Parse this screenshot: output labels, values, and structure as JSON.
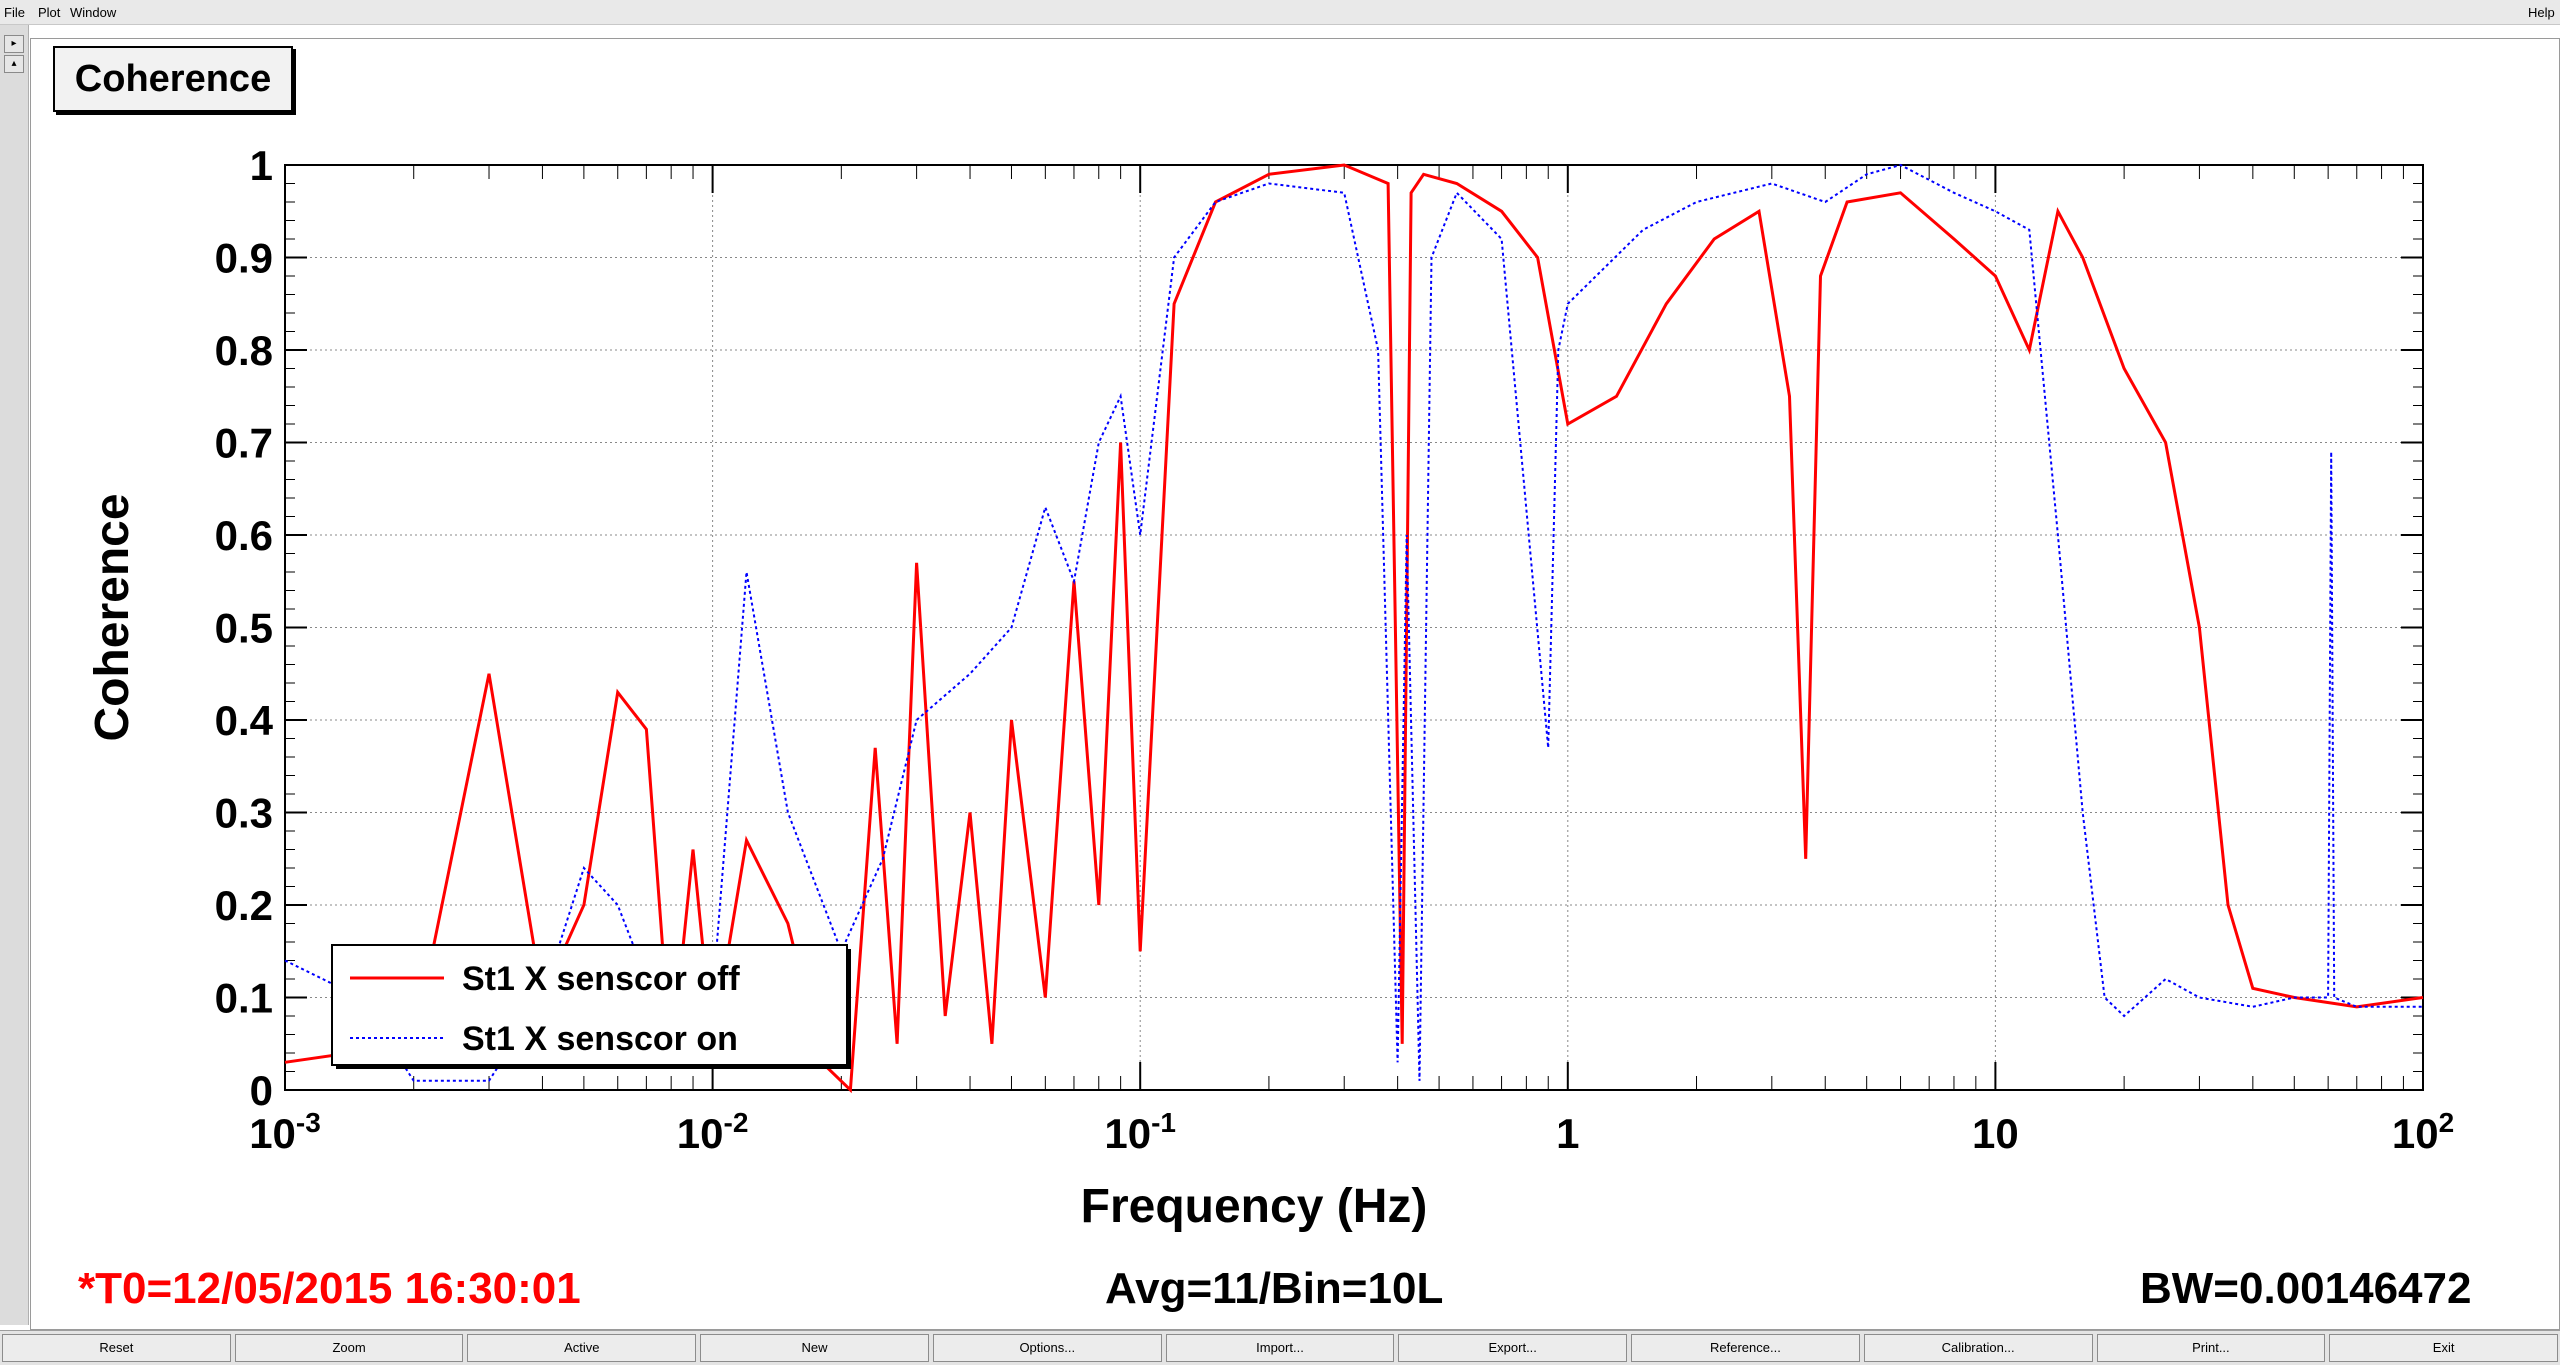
{
  "menu": {
    "file": "File",
    "plot": "Plot",
    "window": "Window",
    "help": "Help"
  },
  "title_box": "Coherence",
  "footer": {
    "t0": "*T0=12/05/2015 16:30:01",
    "avg": "Avg=11/Bin=10L",
    "bw": "BW=0.00146472"
  },
  "toolbar": [
    "Reset",
    "Zoom",
    "Active",
    "New",
    "Options...",
    "Import...",
    "Export...",
    "Reference...",
    "Calibration...",
    "Print...",
    "Exit"
  ],
  "colors": {
    "series_off": "#ff0000",
    "series_on": "#0000ff",
    "t0_text": "#ff0000"
  },
  "chart_data": {
    "type": "line",
    "xlabel": "Frequency (Hz)",
    "ylabel": "Coherence",
    "xscale": "log",
    "xlim": [
      0.001,
      100
    ],
    "ylim": [
      0,
      1
    ],
    "xticks": [
      {
        "v": 0.001,
        "base": "10",
        "exp": "-3"
      },
      {
        "v": 0.01,
        "base": "10",
        "exp": "-2"
      },
      {
        "v": 0.1,
        "base": "10",
        "exp": "-1"
      },
      {
        "v": 1,
        "base": "1",
        "exp": ""
      },
      {
        "v": 10,
        "base": "10",
        "exp": ""
      },
      {
        "v": 100,
        "base": "10",
        "exp": "2"
      }
    ],
    "yticks": [
      "0",
      "0.1",
      "0.2",
      "0.3",
      "0.4",
      "0.5",
      "0.6",
      "0.7",
      "0.8",
      "0.9",
      "1"
    ],
    "grid": true,
    "legend_position": "bottom-left",
    "series": [
      {
        "name": "St1 X senscor off",
        "color": "#ff0000",
        "style": "solid",
        "x": [
          0.001,
          0.002,
          0.003,
          0.004,
          0.005,
          0.006,
          0.007,
          0.008,
          0.009,
          0.01,
          0.012,
          0.015,
          0.018,
          0.021,
          0.024,
          0.027,
          0.03,
          0.035,
          0.04,
          0.045,
          0.05,
          0.06,
          0.07,
          0.08,
          0.09,
          0.1,
          0.12,
          0.15,
          0.2,
          0.3,
          0.38,
          0.41,
          0.43,
          0.46,
          0.55,
          0.7,
          0.85,
          1.0,
          1.3,
          1.7,
          2.2,
          2.8,
          3.3,
          3.6,
          3.9,
          4.5,
          6,
          8,
          10,
          12,
          14,
          16,
          20,
          25,
          30,
          35,
          40,
          50,
          70,
          100
        ],
        "y": [
          0.03,
          0.05,
          0.45,
          0.1,
          0.2,
          0.43,
          0.39,
          0.03,
          0.26,
          0.05,
          0.27,
          0.18,
          0.03,
          0.0,
          0.37,
          0.05,
          0.57,
          0.08,
          0.3,
          0.05,
          0.4,
          0.1,
          0.55,
          0.2,
          0.7,
          0.15,
          0.85,
          0.96,
          0.99,
          1.0,
          0.98,
          0.05,
          0.97,
          0.99,
          0.98,
          0.95,
          0.9,
          0.72,
          0.75,
          0.85,
          0.92,
          0.95,
          0.75,
          0.25,
          0.88,
          0.96,
          0.97,
          0.92,
          0.88,
          0.8,
          0.95,
          0.9,
          0.78,
          0.7,
          0.5,
          0.2,
          0.11,
          0.1,
          0.09,
          0.1
        ]
      },
      {
        "name": "St1 X senscor on",
        "color": "#0000ff",
        "style": "dotted",
        "x": [
          0.001,
          0.0015,
          0.002,
          0.003,
          0.004,
          0.005,
          0.006,
          0.007,
          0.008,
          0.01,
          0.012,
          0.015,
          0.02,
          0.025,
          0.03,
          0.04,
          0.05,
          0.06,
          0.07,
          0.08,
          0.09,
          0.1,
          0.12,
          0.15,
          0.2,
          0.3,
          0.36,
          0.4,
          0.42,
          0.45,
          0.48,
          0.55,
          0.7,
          0.9,
          0.95,
          1.0,
          1.5,
          2,
          3,
          4,
          5,
          6,
          8,
          10,
          12,
          14,
          16,
          18,
          20,
          25,
          30,
          40,
          50,
          60,
          61,
          62,
          70,
          100
        ],
        "y": [
          0.14,
          0.1,
          0.01,
          0.01,
          0.1,
          0.24,
          0.2,
          0.12,
          0.05,
          0.1,
          0.56,
          0.3,
          0.15,
          0.25,
          0.4,
          0.45,
          0.5,
          0.63,
          0.55,
          0.7,
          0.75,
          0.6,
          0.9,
          0.96,
          0.98,
          0.97,
          0.8,
          0.03,
          0.6,
          0.01,
          0.9,
          0.97,
          0.92,
          0.37,
          0.8,
          0.85,
          0.93,
          0.96,
          0.98,
          0.96,
          0.99,
          1.0,
          0.97,
          0.95,
          0.93,
          0.6,
          0.3,
          0.1,
          0.08,
          0.12,
          0.1,
          0.09,
          0.1,
          0.1,
          0.69,
          0.1,
          0.09,
          0.09
        ]
      }
    ]
  }
}
